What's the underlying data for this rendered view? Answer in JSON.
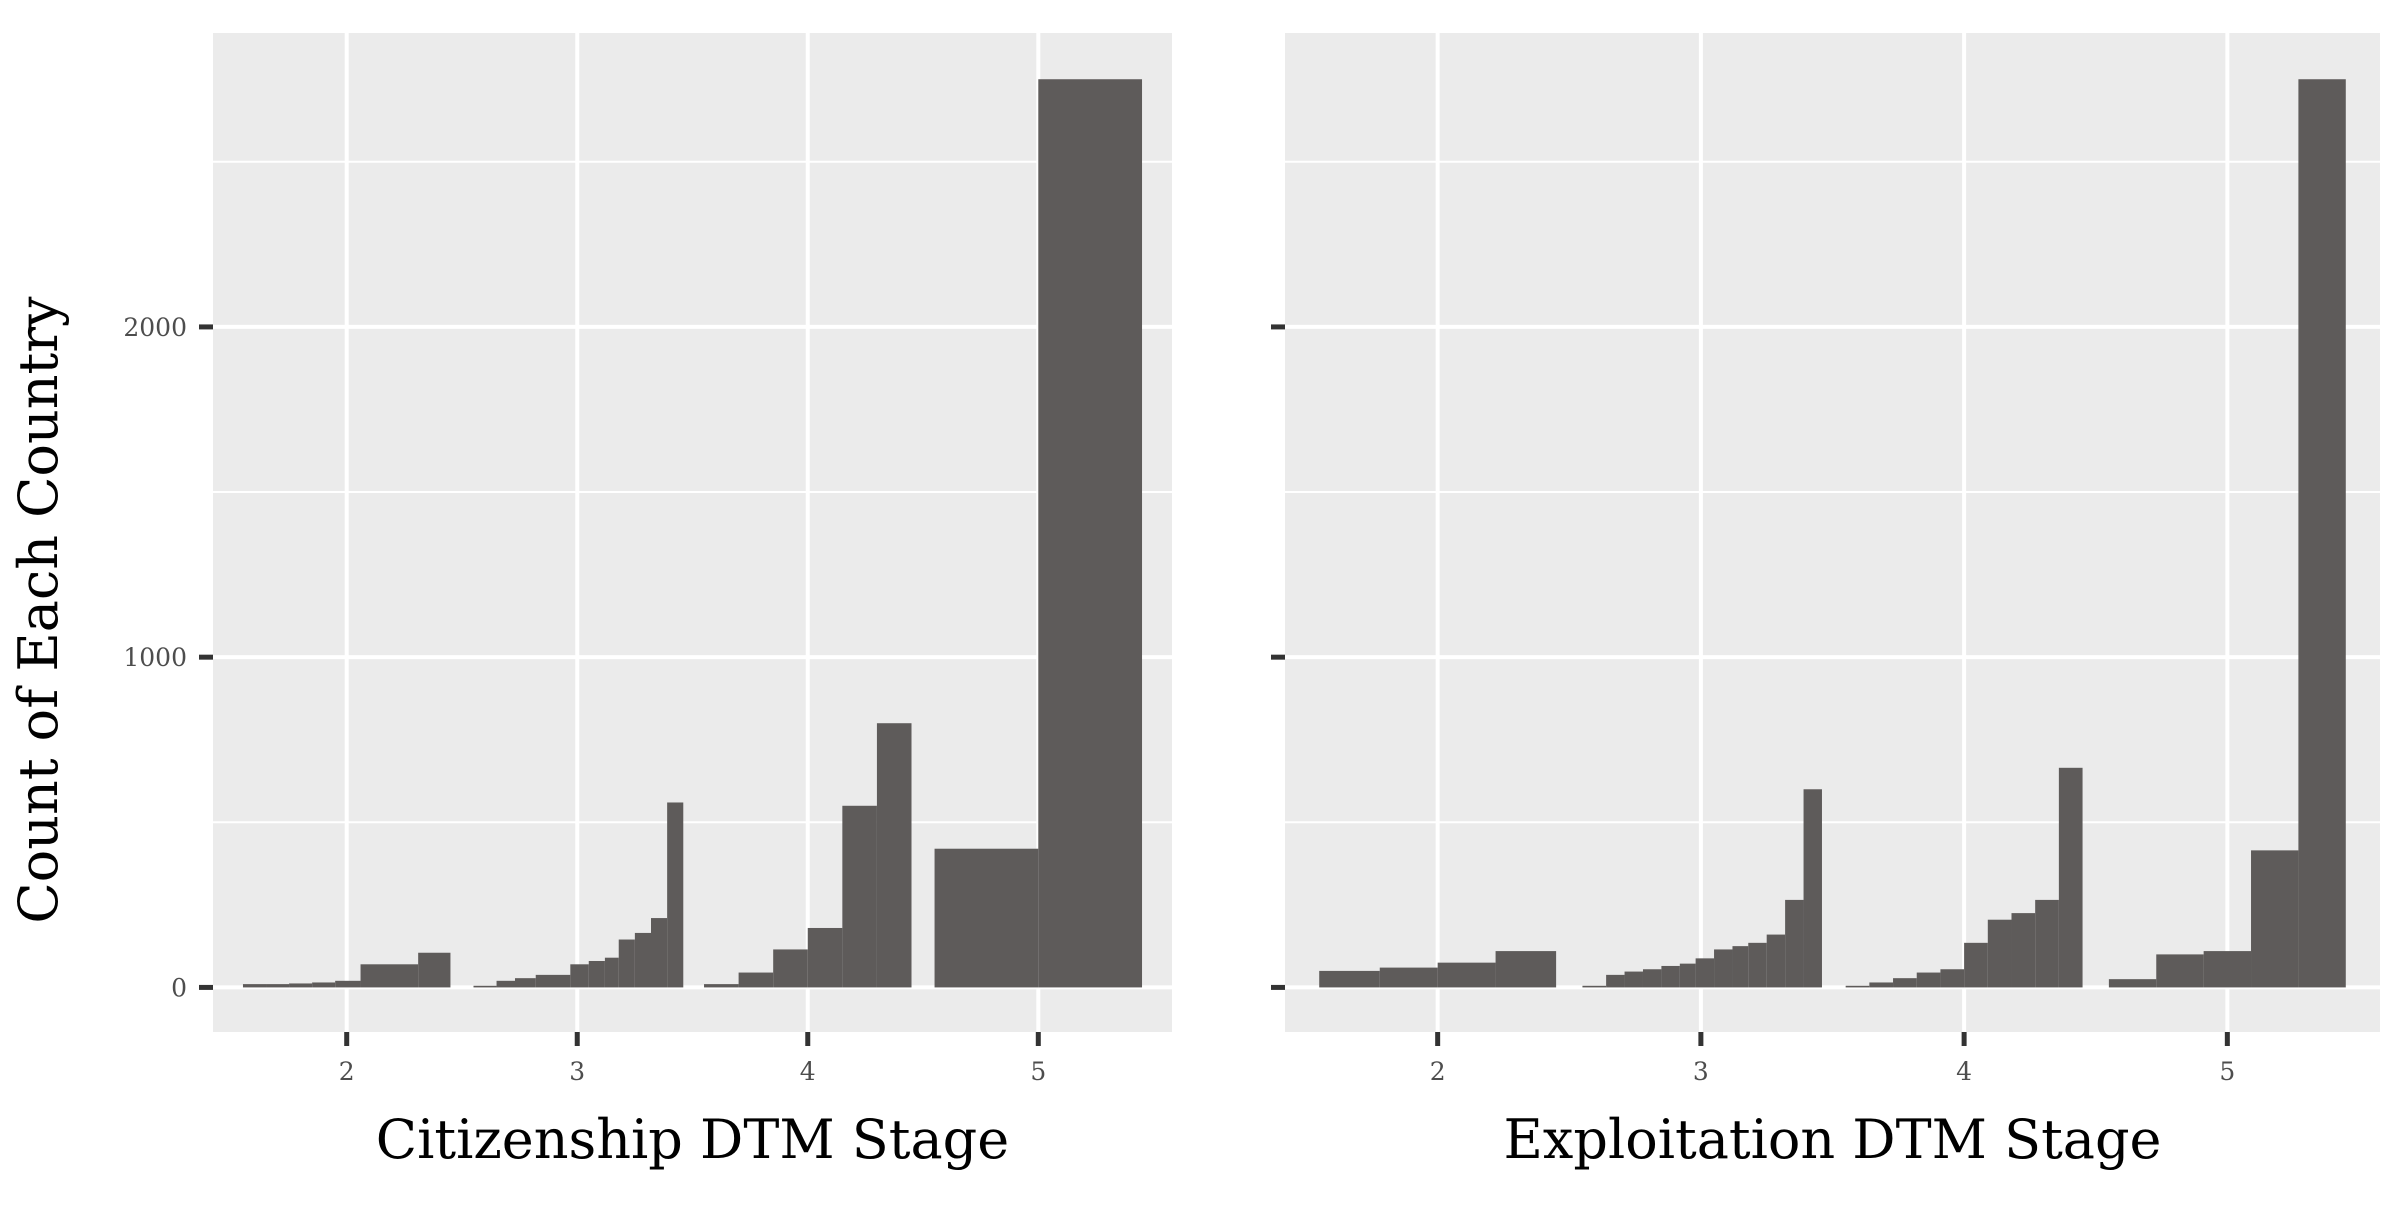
{
  "ylabel": "Count of Each Country",
  "colors": {
    "bar": "#5e5b5a",
    "panel_bg": "#ebebeb",
    "grid": "#ffffff",
    "tick": "#333333",
    "tick_label": "#4d4d4d",
    "page_bg": "#ffffff"
  },
  "chart_data": [
    {
      "type": "bar",
      "xlabel": "Citizenship DTM Stage",
      "ylabel": "Count of Each Country",
      "xlim": [
        1.42,
        5.58
      ],
      "ylim": [
        -135,
        2890
      ],
      "x_ticks": [
        2,
        3,
        4,
        5
      ],
      "y_ticks": [
        0,
        1000,
        2000
      ],
      "y_minor_ticks": [
        500,
        1500,
        2500
      ],
      "show_y_tick_labels": true,
      "grid": true,
      "bars": [
        {
          "x0": 1.55,
          "x1": 1.65,
          "y": 10
        },
        {
          "x0": 1.65,
          "x1": 1.75,
          "y": 10
        },
        {
          "x0": 1.75,
          "x1": 1.85,
          "y": 12
        },
        {
          "x0": 1.85,
          "x1": 1.95,
          "y": 15
        },
        {
          "x0": 1.95,
          "x1": 2.06,
          "y": 20
        },
        {
          "x0": 2.06,
          "x1": 2.31,
          "y": 70
        },
        {
          "x0": 2.31,
          "x1": 2.45,
          "y": 105
        },
        {
          "x0": 2.55,
          "x1": 2.65,
          "y": 5
        },
        {
          "x0": 2.65,
          "x1": 2.73,
          "y": 20
        },
        {
          "x0": 2.73,
          "x1": 2.82,
          "y": 28
        },
        {
          "x0": 2.82,
          "x1": 2.97,
          "y": 38
        },
        {
          "x0": 2.97,
          "x1": 3.05,
          "y": 70
        },
        {
          "x0": 3.05,
          "x1": 3.12,
          "y": 80
        },
        {
          "x0": 3.12,
          "x1": 3.18,
          "y": 90
        },
        {
          "x0": 3.18,
          "x1": 3.25,
          "y": 145
        },
        {
          "x0": 3.25,
          "x1": 3.32,
          "y": 165
        },
        {
          "x0": 3.32,
          "x1": 3.39,
          "y": 210
        },
        {
          "x0": 3.39,
          "x1": 3.46,
          "y": 560
        },
        {
          "x0": 3.55,
          "x1": 3.7,
          "y": 10
        },
        {
          "x0": 3.7,
          "x1": 3.85,
          "y": 45
        },
        {
          "x0": 3.85,
          "x1": 4.0,
          "y": 115
        },
        {
          "x0": 4.0,
          "x1": 4.15,
          "y": 180
        },
        {
          "x0": 4.15,
          "x1": 4.3,
          "y": 550
        },
        {
          "x0": 4.3,
          "x1": 4.45,
          "y": 800
        },
        {
          "x0": 4.55,
          "x1": 5.0,
          "y": 420
        },
        {
          "x0": 5.0,
          "x1": 5.45,
          "y": 2750
        }
      ]
    },
    {
      "type": "bar",
      "xlabel": "Exploitation DTM Stage",
      "ylabel": "",
      "xlim": [
        1.42,
        5.58
      ],
      "ylim": [
        -135,
        2890
      ],
      "x_ticks": [
        2,
        3,
        4,
        5
      ],
      "y_ticks": [
        0,
        1000,
        2000
      ],
      "y_minor_ticks": [
        500,
        1500,
        2500
      ],
      "show_y_tick_labels": false,
      "grid": true,
      "bars": [
        {
          "x0": 1.55,
          "x1": 1.78,
          "y": 50
        },
        {
          "x0": 1.78,
          "x1": 2.0,
          "y": 60
        },
        {
          "x0": 2.0,
          "x1": 2.22,
          "y": 75
        },
        {
          "x0": 2.22,
          "x1": 2.45,
          "y": 110
        },
        {
          "x0": 2.55,
          "x1": 2.64,
          "y": 5
        },
        {
          "x0": 2.64,
          "x1": 2.71,
          "y": 38
        },
        {
          "x0": 2.71,
          "x1": 2.78,
          "y": 48
        },
        {
          "x0": 2.78,
          "x1": 2.85,
          "y": 55
        },
        {
          "x0": 2.85,
          "x1": 2.92,
          "y": 65
        },
        {
          "x0": 2.92,
          "x1": 2.98,
          "y": 72
        },
        {
          "x0": 2.98,
          "x1": 3.05,
          "y": 88
        },
        {
          "x0": 3.05,
          "x1": 3.12,
          "y": 115
        },
        {
          "x0": 3.12,
          "x1": 3.18,
          "y": 125
        },
        {
          "x0": 3.18,
          "x1": 3.25,
          "y": 135
        },
        {
          "x0": 3.25,
          "x1": 3.32,
          "y": 160
        },
        {
          "x0": 3.32,
          "x1": 3.39,
          "y": 265
        },
        {
          "x0": 3.39,
          "x1": 3.46,
          "y": 600
        },
        {
          "x0": 3.55,
          "x1": 3.64,
          "y": 5
        },
        {
          "x0": 3.64,
          "x1": 3.73,
          "y": 15
        },
        {
          "x0": 3.73,
          "x1": 3.82,
          "y": 28
        },
        {
          "x0": 3.82,
          "x1": 3.91,
          "y": 45
        },
        {
          "x0": 3.91,
          "x1": 4.0,
          "y": 55
        },
        {
          "x0": 4.0,
          "x1": 4.09,
          "y": 135
        },
        {
          "x0": 4.09,
          "x1": 4.18,
          "y": 205
        },
        {
          "x0": 4.18,
          "x1": 4.27,
          "y": 225
        },
        {
          "x0": 4.27,
          "x1": 4.36,
          "y": 265
        },
        {
          "x0": 4.36,
          "x1": 4.45,
          "y": 665
        },
        {
          "x0": 4.55,
          "x1": 4.73,
          "y": 25
        },
        {
          "x0": 4.73,
          "x1": 4.91,
          "y": 100
        },
        {
          "x0": 4.91,
          "x1": 5.09,
          "y": 110
        },
        {
          "x0": 5.09,
          "x1": 5.27,
          "y": 415
        },
        {
          "x0": 5.27,
          "x1": 5.45,
          "y": 2750
        }
      ]
    }
  ]
}
